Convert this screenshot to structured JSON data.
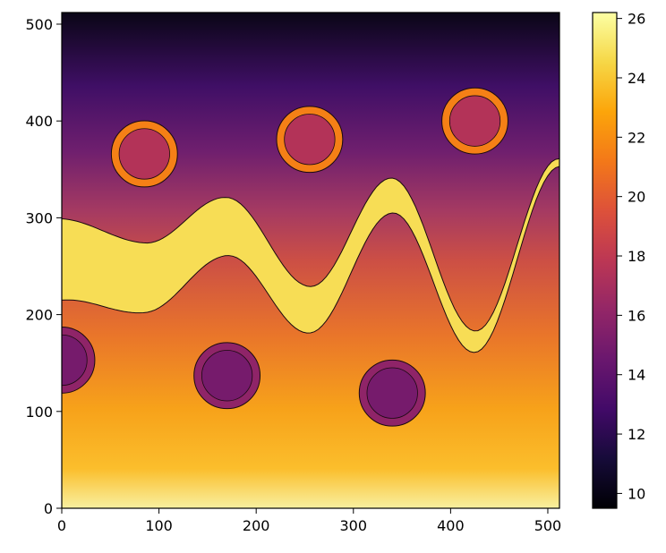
{
  "chart_data": {
    "type": "heatmap",
    "colormap": "inferno",
    "xlim": [
      0,
      512
    ],
    "ylim": [
      0,
      512
    ],
    "x_ticks": [
      0,
      100,
      200,
      300,
      400,
      500
    ],
    "y_ticks": [
      0,
      100,
      200,
      300,
      400,
      500
    ],
    "colorbar": {
      "range": [
        9.5,
        26.2
      ],
      "ticks": [
        10,
        12,
        14,
        16,
        18,
        20,
        22,
        24,
        26
      ]
    },
    "background_field": {
      "description_value_bottom": 24.5,
      "description_value_top": 10.5
    },
    "band": {
      "center_y": [
        [
          0,
          257
        ],
        [
          85,
          238
        ],
        [
          170,
          291
        ],
        [
          255,
          205
        ],
        [
          340,
          323
        ],
        [
          425,
          172
        ],
        [
          512,
          357
        ]
      ],
      "half_width": [
        [
          0,
          42
        ],
        [
          170,
          30
        ],
        [
          340,
          18
        ],
        [
          512,
          4
        ]
      ],
      "value": 24.8
    },
    "circles": [
      {
        "cx": 85,
        "cy": 366,
        "outer_r": 34,
        "inner_r": 26,
        "ring_value": 21.5,
        "inner_value": 17.5
      },
      {
        "cx": 255,
        "cy": 381,
        "outer_r": 34,
        "inner_r": 26,
        "ring_value": 21.5,
        "inner_value": 17.5
      },
      {
        "cx": 425,
        "cy": 400,
        "outer_r": 34,
        "inner_r": 26,
        "ring_value": 21.5,
        "inner_value": 17.5
      },
      {
        "cx": 0,
        "cy": 153,
        "outer_r": 34,
        "inner_r": 26,
        "ring_value": 16.0,
        "inner_value": 15.0
      },
      {
        "cx": 170,
        "cy": 137,
        "outer_r": 34,
        "inner_r": 26,
        "ring_value": 16.0,
        "inner_value": 15.0
      },
      {
        "cx": 340,
        "cy": 119,
        "outer_r": 34,
        "inner_r": 26,
        "ring_value": 16.0,
        "inner_value": 15.0
      }
    ]
  }
}
